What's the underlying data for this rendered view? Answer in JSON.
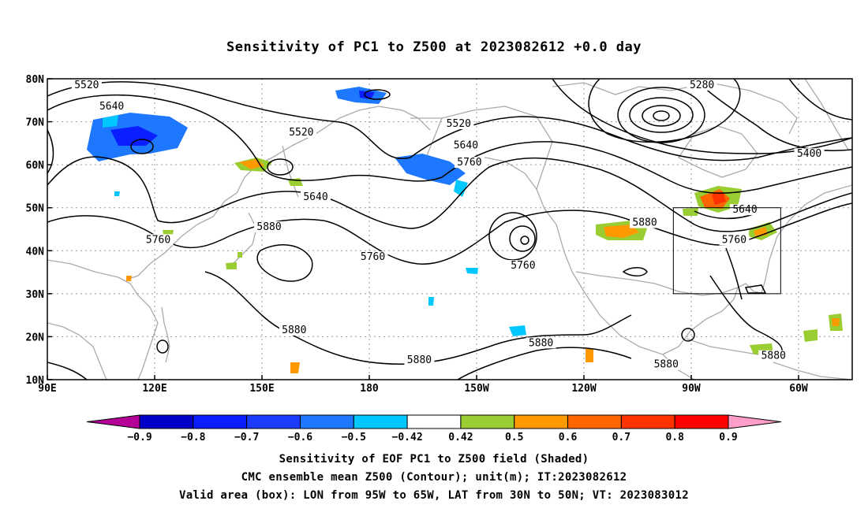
{
  "title": "Sensitivity of PC1 to Z500 at 2023082612 +0.0 day",
  "lon_ticks": [
    {
      "lon": 90,
      "label": "90E"
    },
    {
      "lon": 120,
      "label": "120E"
    },
    {
      "lon": 150,
      "label": "150E"
    },
    {
      "lon": 180,
      "label": "180"
    },
    {
      "lon": 210,
      "label": "150W"
    },
    {
      "lon": 240,
      "label": "120W"
    },
    {
      "lon": 270,
      "label": "90W"
    },
    {
      "lon": 300,
      "label": "60W"
    }
  ],
  "lat_ticks": [
    {
      "lat": 80,
      "label": "80N"
    },
    {
      "lat": 70,
      "label": "70N"
    },
    {
      "lat": 60,
      "label": "60N"
    },
    {
      "lat": 50,
      "label": "50N"
    },
    {
      "lat": 40,
      "label": "40N"
    },
    {
      "lat": 30,
      "label": "30N"
    },
    {
      "lat": 20,
      "label": "20N"
    },
    {
      "lat": 10,
      "label": "10N"
    }
  ],
  "map_extent": {
    "lon_min": 90,
    "lon_max": 315,
    "lat_min": 10,
    "lat_max": 80
  },
  "valid_box": {
    "lon_min": 265,
    "lon_max": 295,
    "lat_min": 30,
    "lat_max": 50
  },
  "contour_labels": [
    {
      "text": "5520",
      "lon": 101,
      "lat": 78
    },
    {
      "text": "5640",
      "lon": 108,
      "lat": 73
    },
    {
      "text": "5520",
      "lon": 161,
      "lat": 67
    },
    {
      "text": "5520",
      "lon": 205,
      "lat": 69
    },
    {
      "text": "5640",
      "lon": 207,
      "lat": 64
    },
    {
      "text": "5760",
      "lon": 208,
      "lat": 60
    },
    {
      "text": "5640",
      "lon": 165,
      "lat": 52
    },
    {
      "text": "5880",
      "lon": 152,
      "lat": 45
    },
    {
      "text": "5760",
      "lon": 121,
      "lat": 42
    },
    {
      "text": "5760",
      "lon": 181,
      "lat": 38
    },
    {
      "text": "5760",
      "lon": 223,
      "lat": 36
    },
    {
      "text": "5880",
      "lon": 257,
      "lat": 46
    },
    {
      "text": "5640",
      "lon": 285,
      "lat": 49
    },
    {
      "text": "5760",
      "lon": 282,
      "lat": 42
    },
    {
      "text": "5280",
      "lon": 273,
      "lat": 78
    },
    {
      "text": "5400",
      "lon": 303,
      "lat": 62
    },
    {
      "text": "5880",
      "lon": 159,
      "lat": 21
    },
    {
      "text": "5880",
      "lon": 194,
      "lat": 14
    },
    {
      "text": "5880",
      "lon": 228,
      "lat": 18
    },
    {
      "text": "5880",
      "lon": 263,
      "lat": 13
    },
    {
      "text": "5880",
      "lon": 293,
      "lat": 15
    }
  ],
  "colorbar": {
    "colors": [
      "#b40096",
      "#0000c8",
      "#0a1eff",
      "#1e3cff",
      "#1e78ff",
      "#00c8ff",
      "#ffffff",
      "#9acd32",
      "#ff9900",
      "#ff6600",
      "#ff3300",
      "#ff0000",
      "#ff9ec8"
    ],
    "labels": [
      "−0.9",
      "−0.8",
      "−0.7",
      "−0.6",
      "−0.5",
      "−0.42",
      "0.42",
      "0.5",
      "0.6",
      "0.7",
      "0.8",
      "0.9"
    ]
  },
  "footer": {
    "line1": "Sensitivity of EOF PC1 to Z500 field (Shaded)",
    "line2": "CMC ensemble mean Z500 (Contour); unit(m); IT:2023082612",
    "line3": "Valid area (box): LON from 95W to 65W, LAT from 30N to 50N; VT: 2023083012"
  }
}
